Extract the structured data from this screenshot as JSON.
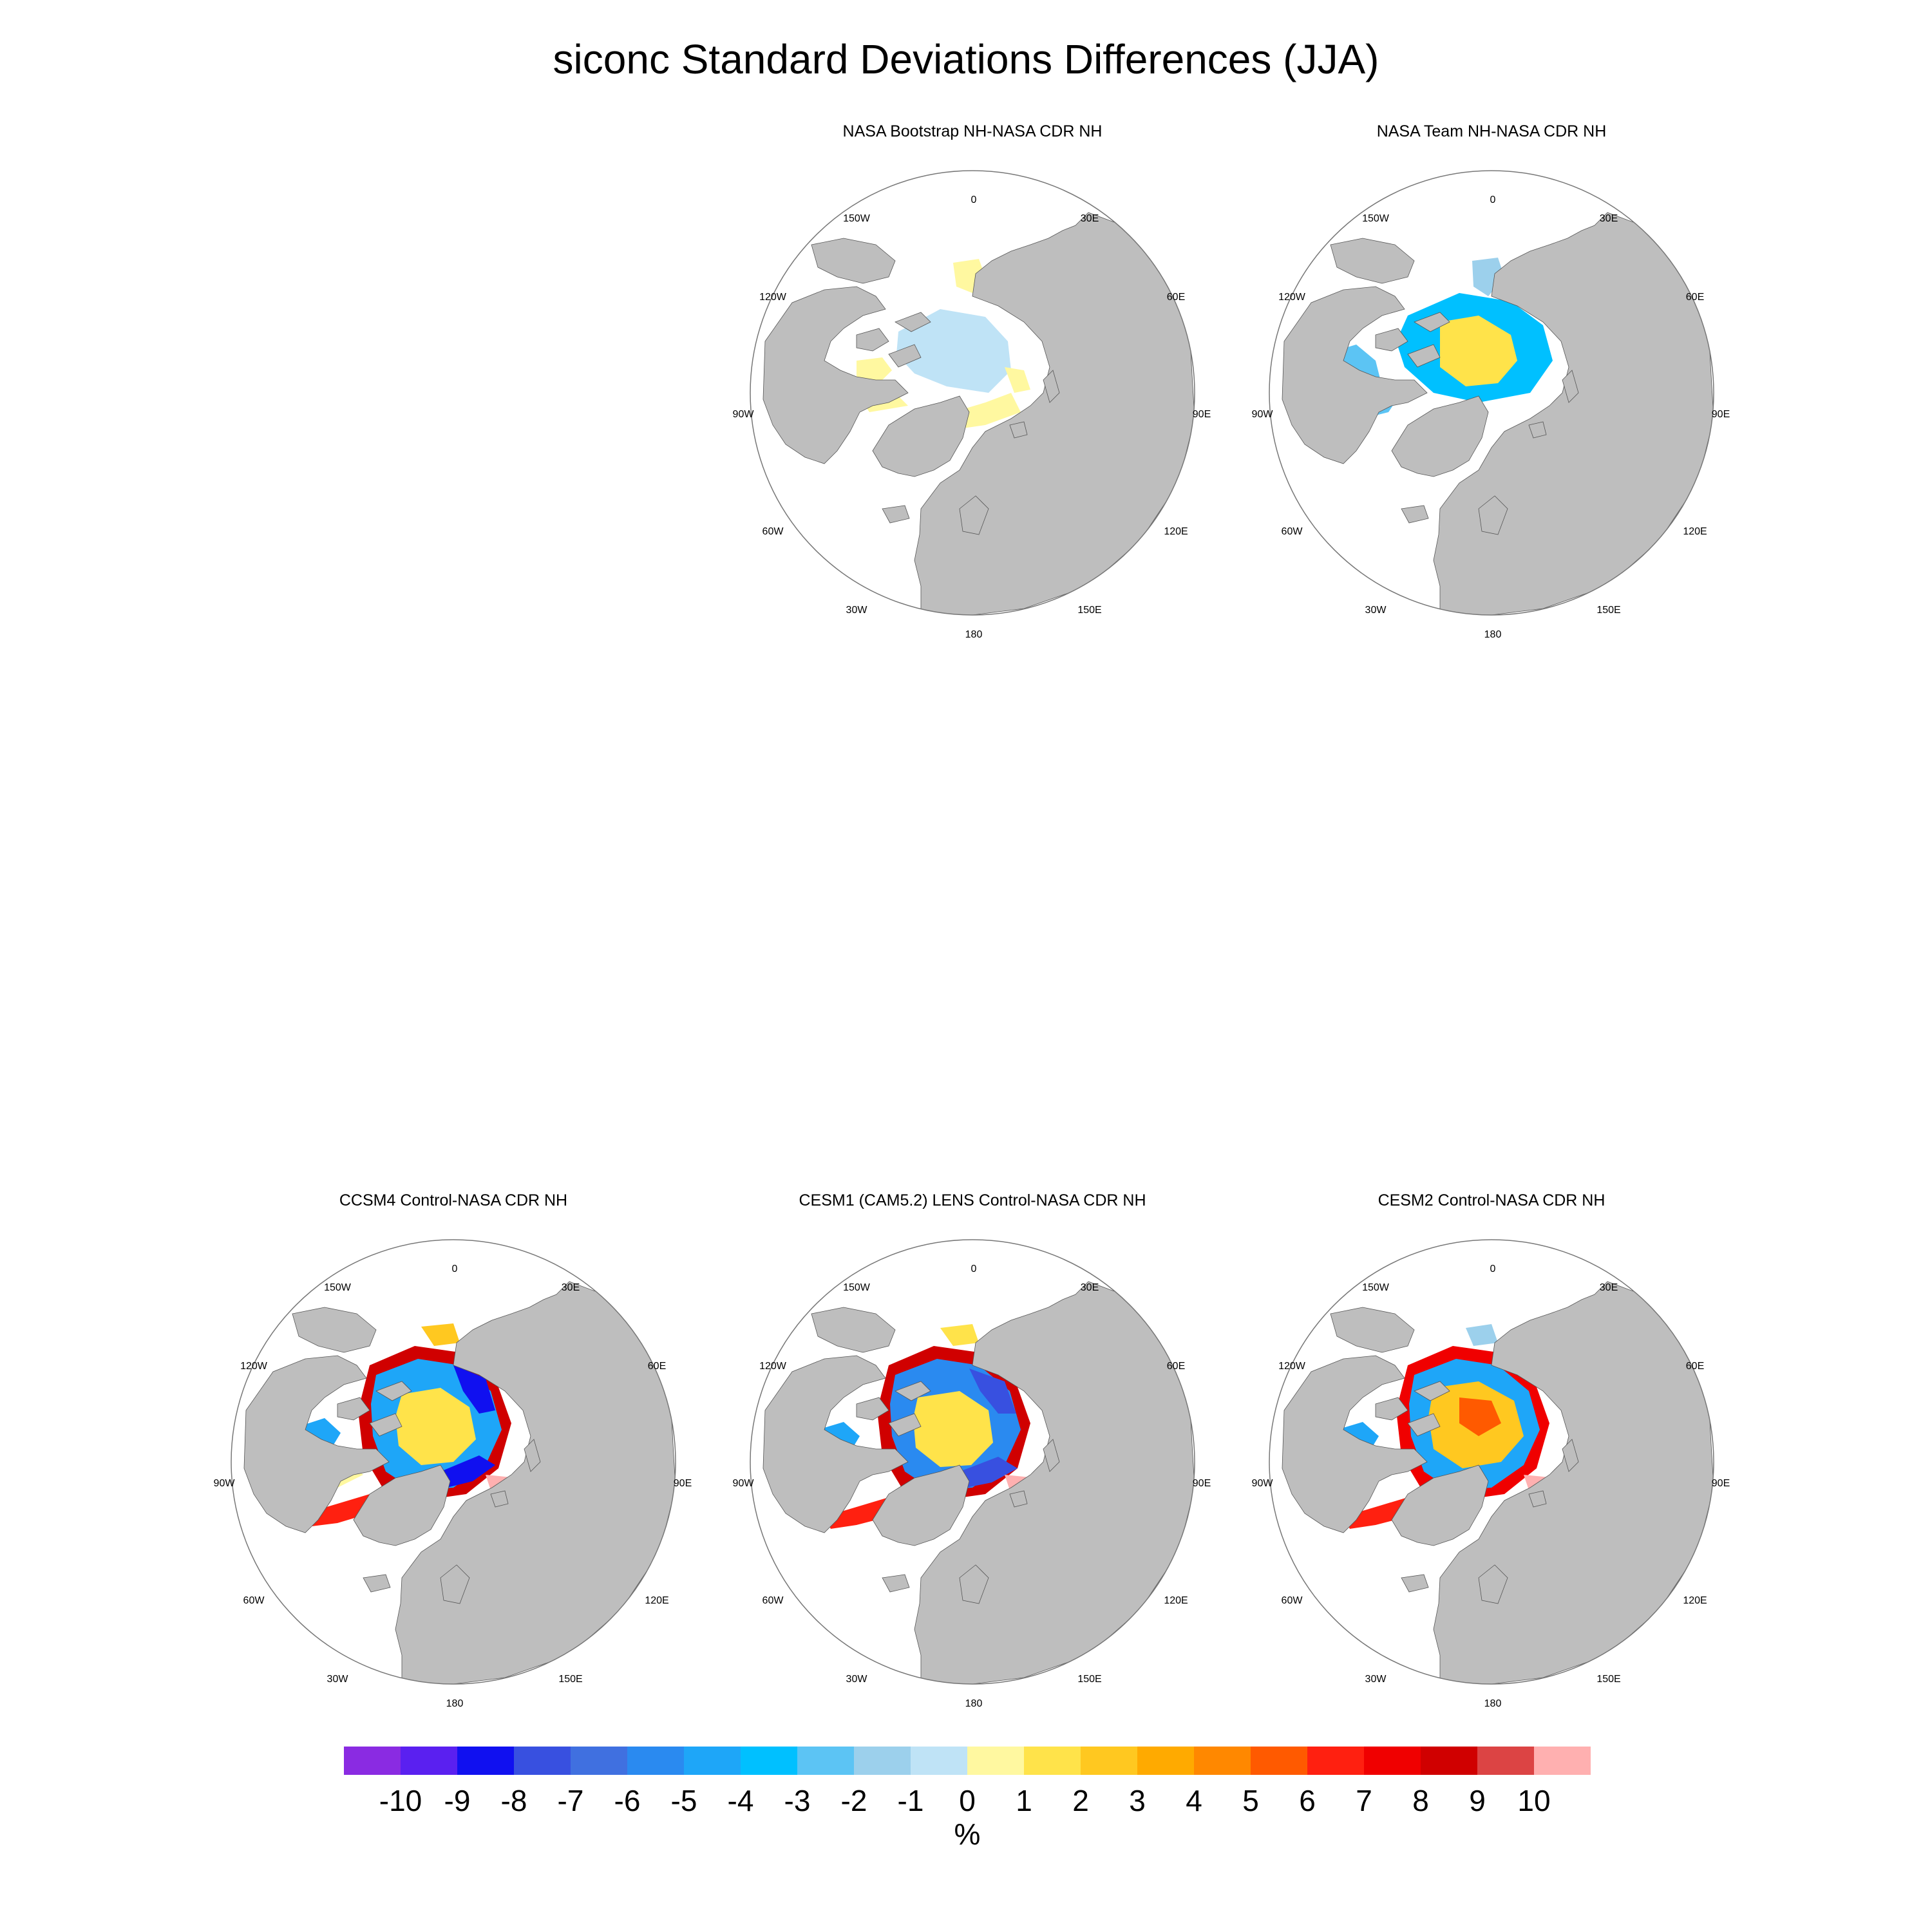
{
  "title": "siconc Standard Deviations Differences (JJA)",
  "panels": [
    {
      "id": "bootstrap",
      "title": "NASA Bootstrap NH-NASA CDR NH",
      "pattern": "bootstrap"
    },
    {
      "id": "team",
      "title": "NASA Team NH-NASA CDR NH",
      "pattern": "team"
    },
    {
      "id": "ccsm4",
      "title": "CCSM4 Control-NASA CDR NH",
      "pattern": "model"
    },
    {
      "id": "cesm1",
      "title": "CESM1 (CAM5.2) LENS Control-NASA CDR NH",
      "pattern": "model2"
    },
    {
      "id": "cesm2",
      "title": "CESM2 Control-NASA CDR NH",
      "pattern": "model3"
    }
  ],
  "longitude_labels": [
    "180",
    "150E",
    "120E",
    "90E",
    "60E",
    "30E",
    "0",
    "30W",
    "60W",
    "90W",
    "120W",
    "150W"
  ],
  "colorbar": {
    "unit": "%",
    "tick_labels": [
      "-10",
      "-9",
      "-8",
      "-7",
      "-6",
      "-5",
      "-4",
      "-3",
      "-2",
      "-1",
      "0",
      "1",
      "2",
      "3",
      "4",
      "5",
      "6",
      "7",
      "8",
      "9",
      "10"
    ],
    "colors": [
      "#8a2be2",
      "#5a20f0",
      "#1010f0",
      "#3850e0",
      "#4070e0",
      "#2a8af0",
      "#1ea6f8",
      "#00c0ff",
      "#5cc4f4",
      "#9cd0ec",
      "#bfe3f6",
      "#fff8a0",
      "#ffe34a",
      "#ffc820",
      "#ffaa00",
      "#ff8800",
      "#ff5a00",
      "#ff2010",
      "#f00000",
      "#d00000",
      "#dc4444",
      "#ffb0b0"
    ]
  },
  "colors": {
    "land": "#bebebe",
    "ocean": "#ffffff",
    "border": "#777777"
  }
}
